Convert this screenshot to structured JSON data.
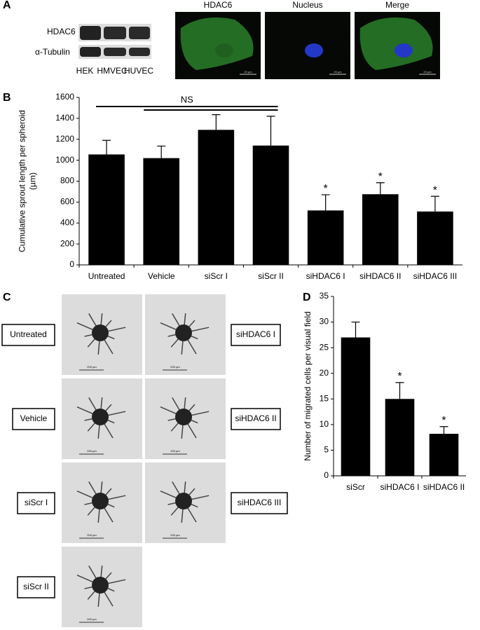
{
  "panel_labels": [
    "A",
    "B",
    "C",
    "D"
  ],
  "panel_a": {
    "blot_labels": [
      "HDAC6",
      "α-Tubulin"
    ],
    "lanes": [
      "HEK",
      "HMVEC",
      "HUVEC"
    ],
    "image_titles": [
      "HDAC6",
      "Nucleus",
      "Merge"
    ],
    "scale_label": "20 µm"
  },
  "panel_c": {
    "left_labels": [
      "Untreated",
      "Vehicle",
      "siScr I",
      "siScr II"
    ],
    "right_labels": [
      "siHDAC6 I",
      "siHDAC6 II",
      "siHDAC6 III"
    ],
    "scale_label": "200 µm"
  },
  "chart_data": [
    {
      "type": "bar",
      "ylabel": [
        "Cumulative sprout length per spheroid",
        "(µm)"
      ],
      "annotation": "NS",
      "categories": [
        "Untreated",
        "Vehicle",
        "siScr I",
        "siScr II",
        "siHDAC6 I",
        "siHDAC6 II",
        "siHDAC6 III"
      ],
      "values": [
        1055,
        1020,
        1290,
        1140,
        520,
        675,
        510
      ],
      "errors": [
        135,
        115,
        145,
        280,
        150,
        110,
        145
      ],
      "markers": [
        null,
        null,
        null,
        null,
        "*",
        "*",
        "*"
      ],
      "color": "#000000",
      "ylim": [
        0,
        1600
      ],
      "yticks": [
        0,
        200,
        400,
        600,
        800,
        1000,
        1200,
        1400,
        1600
      ]
    },
    {
      "type": "bar",
      "ylabel": [
        "Number of migrated cells per visual field"
      ],
      "categories": [
        "siScr",
        "siHDAC6 I",
        "siHDAC6 II"
      ],
      "values": [
        27,
        15,
        8.2
      ],
      "errors": [
        3,
        3.2,
        1.4
      ],
      "markers": [
        null,
        "*",
        "*"
      ],
      "color": "#000000",
      "ylim": [
        0,
        35
      ],
      "yticks": [
        0,
        5,
        10,
        15,
        20,
        25,
        30,
        35
      ]
    }
  ]
}
